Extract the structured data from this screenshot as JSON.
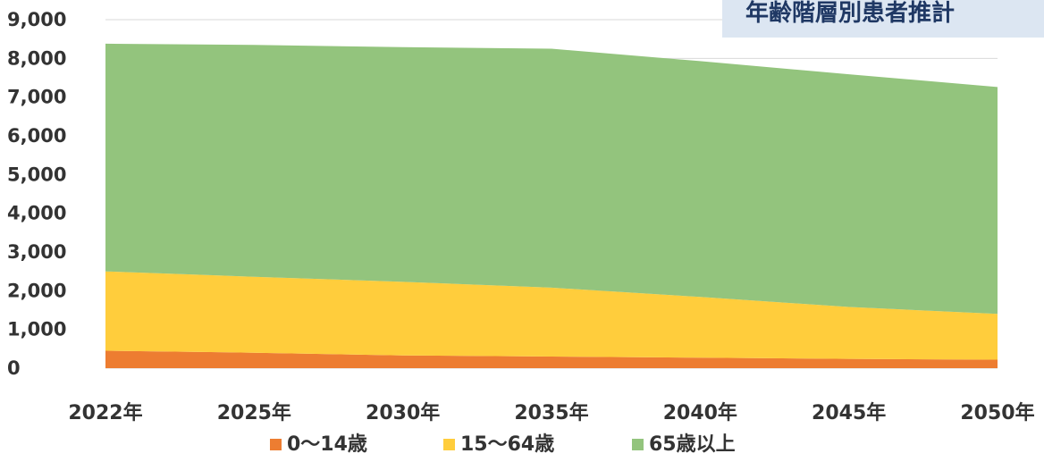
{
  "chart_data": {
    "type": "area",
    "stacked": true,
    "title": "年齢階層別患者推計",
    "x": [
      "2022年",
      "2025年",
      "2030年",
      "2035年",
      "2040年",
      "2045年",
      "2050年"
    ],
    "series": [
      {
        "name": "0〜14歳",
        "color": "#ed7d31",
        "values": [
          450,
          400,
          330,
          300,
          270,
          240,
          220
        ]
      },
      {
        "name": "15〜64歳",
        "color": "#ffcd3c",
        "values": [
          2050,
          1960,
          1900,
          1780,
          1570,
          1340,
          1180
        ]
      },
      {
        "name": "65歳以上",
        "color": "#93c47d",
        "values": [
          5880,
          5990,
          6060,
          6170,
          6090,
          6010,
          5860
        ]
      }
    ],
    "ylim": [
      0,
      9000
    ],
    "yticks": [
      {
        "value": 0,
        "label": "0"
      },
      {
        "value": 1000,
        "label": "1,000"
      },
      {
        "value": 2000,
        "label": "2,000"
      },
      {
        "value": 3000,
        "label": "3,000"
      },
      {
        "value": 4000,
        "label": "4,000"
      },
      {
        "value": 5000,
        "label": "5,000"
      },
      {
        "value": 6000,
        "label": "6,000"
      },
      {
        "value": 7000,
        "label": "7,000"
      },
      {
        "value": 8000,
        "label": "8,000"
      },
      {
        "value": 9000,
        "label": "9,000"
      }
    ],
    "grid": true,
    "legend_position": "bottom"
  }
}
